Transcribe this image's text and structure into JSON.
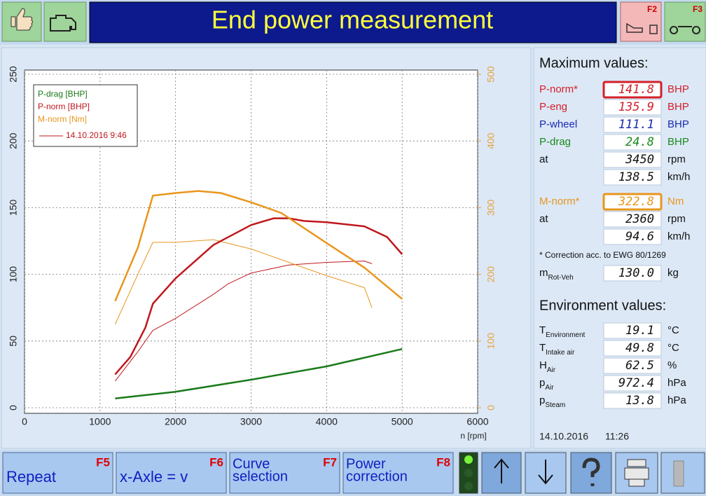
{
  "toolbar": {
    "title": "End power measurement",
    "keys": [
      "F2",
      "F3"
    ]
  },
  "chart": {
    "type": "line",
    "xlabel": "n [rpm]",
    "xlim": [
      0,
      6000
    ],
    "xticks": [
      0,
      1000,
      2000,
      3000,
      4000,
      5000,
      6000
    ],
    "ylim": [
      0,
      250
    ],
    "yticks": [
      0,
      50,
      100,
      150,
      200,
      250
    ],
    "y2lim": [
      0,
      500
    ],
    "y2ticks": [
      0,
      100,
      200,
      300,
      400,
      500
    ],
    "y2color": "#e8a33a",
    "grid": true,
    "series": [
      {
        "name": "P-drag [BHP]",
        "color": "#1a7a1a",
        "width": 2.5,
        "x": [
          1200,
          2000,
          3000,
          4000,
          5000
        ],
        "values": [
          7,
          12,
          21,
          31,
          44
        ]
      },
      {
        "name": "P-norm [BHP]",
        "color": "#c0171c",
        "width": 2.5,
        "x": [
          1200,
          1400,
          1600,
          1700,
          2000,
          2500,
          3000,
          3300,
          3500,
          3700,
          4000,
          4500,
          4800,
          5000
        ],
        "values": [
          25,
          38,
          60,
          78,
          97,
          122,
          137,
          142,
          142,
          140,
          139,
          136,
          128,
          115
        ]
      },
      {
        "name": "M-norm [Nm]",
        "color": "#e8961e",
        "width": 2.5,
        "axis": "y2",
        "x": [
          1200,
          1500,
          1700,
          2000,
          2300,
          2600,
          3000,
          3400,
          4000,
          4500,
          5000
        ],
        "values": [
          160,
          240,
          318,
          322,
          325,
          322,
          308,
          292,
          247,
          210,
          163
        ]
      }
    ],
    "comparison": {
      "label": "14.10.2016 9:46",
      "color": "#c0171c",
      "series": [
        {
          "color": "#c0171c",
          "x": [
            1200,
            1500,
            1700,
            2000,
            2500,
            2700,
            3000,
            3500,
            4000,
            4500,
            4600
          ],
          "values": [
            20,
            42,
            58,
            67,
            85,
            93,
            101,
            107,
            109,
            110,
            108
          ]
        },
        {
          "color": "#e8961e",
          "axis": "y2",
          "x": [
            1200,
            1500,
            1700,
            2000,
            2500,
            3000,
            3500,
            4000,
            4500,
            4600
          ],
          "values": [
            125,
            200,
            248,
            248,
            252,
            238,
            218,
            198,
            180,
            150
          ]
        }
      ]
    }
  },
  "max_values": {
    "title": "Maximum values:",
    "rows": [
      {
        "label": "P-norm*",
        "value": "141.8",
        "unit": "BHP",
        "color": "#d4202a",
        "highlight": true
      },
      {
        "label": "P-eng",
        "value": "135.9",
        "unit": "BHP",
        "color": "#d4202a"
      },
      {
        "label": "P-wheel",
        "value": "111.1",
        "unit": "BHP",
        "color": "#1a2ab0"
      },
      {
        "label": "P-drag",
        "value": "24.8",
        "unit": "BHP",
        "color": "#1a8a1a"
      },
      {
        "label": "at",
        "value": "3450",
        "unit": "rpm",
        "color": "#111111"
      },
      {
        "value": "138.5",
        "unit": "km/h",
        "color": "#111111"
      },
      {
        "label": "M-norm*",
        "value": "322.8",
        "unit": "Nm",
        "color": "#e8961e",
        "highlight": true
      },
      {
        "label": "at",
        "value": "2360",
        "unit": "rpm",
        "color": "#111111"
      },
      {
        "value": "94.6",
        "unit": "km/h",
        "color": "#111111"
      }
    ],
    "note": "* Correction acc. to EWG 80/1269",
    "mass": {
      "label": "m",
      "sub": "Rot-Veh",
      "value": "130.0",
      "unit": "kg"
    }
  },
  "environment": {
    "title": "Environment values:",
    "rows": [
      {
        "label": "T",
        "sub": "Environment",
        "value": "19.1",
        "unit": "°C"
      },
      {
        "label": "T",
        "sub": "Intake air",
        "value": "49.8",
        "unit": "°C"
      },
      {
        "label": "H",
        "sub": "Air",
        "value": "62.5",
        "unit": "%"
      },
      {
        "label": "p",
        "sub": "Air",
        "value": "972.4",
        "unit": "hPa"
      },
      {
        "label": "p",
        "sub": "Steam",
        "value": "13.8",
        "unit": "hPa"
      }
    ]
  },
  "status": {
    "date": "14.10.2016",
    "time": "11:26"
  },
  "buttons": [
    {
      "key": "F5",
      "label": "Repeat"
    },
    {
      "key": "F6",
      "label": "x-Axle = v"
    },
    {
      "key": "F7",
      "lines": [
        "Curve",
        "selection"
      ]
    },
    {
      "key": "F8",
      "lines": [
        "Power",
        "correction"
      ]
    }
  ]
}
